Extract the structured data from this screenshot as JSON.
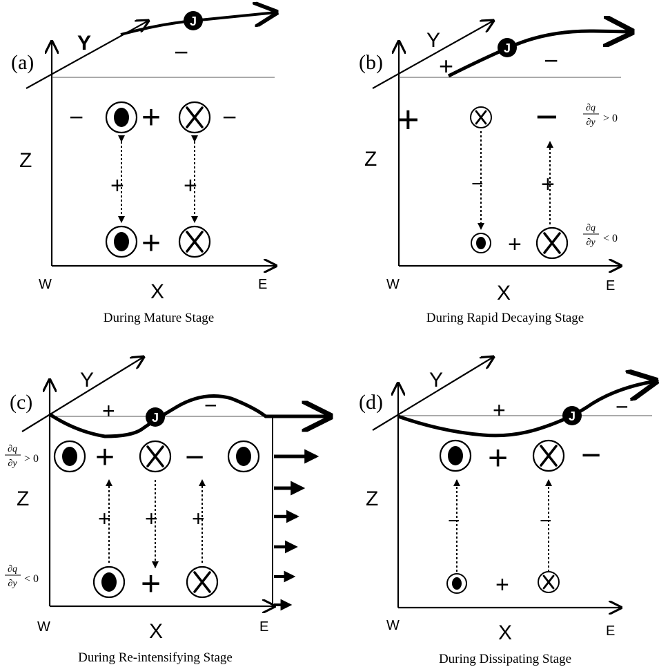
{
  "panels": {
    "a": {
      "tag": "(a)",
      "axis_y": "Y",
      "axis_z": "Z",
      "axis_x": "X",
      "west": "W",
      "east": "E",
      "jet": "J",
      "caption": "During Mature Stage",
      "signs": {
        "top": "−",
        "left": "−",
        "mid": "+",
        "right": "−",
        "link1": "+",
        "link2": "+",
        "bottom": "+"
      }
    },
    "b": {
      "tag": "(b)",
      "axis_y": "Y",
      "axis_z": "Z",
      "axis_x": "X",
      "west": "W",
      "east": "E",
      "jet": "J",
      "caption": "During Rapid Decaying Stage",
      "signs": {
        "jet_left": "+",
        "jet_right": "−",
        "upper_left": "+",
        "upper_right": "−",
        "link1": "−",
        "link2": "+",
        "bottom": "+"
      },
      "eq_upper": "∂q/∂y > 0",
      "eq_lower": "∂q/∂y < 0"
    },
    "c": {
      "tag": "(c)",
      "axis_y": "Y",
      "axis_z": "Z",
      "axis_x": "X",
      "west": "W",
      "east": "E",
      "jet": "J",
      "caption": "During Re-intensifying Stage",
      "signs": {
        "top_left": "+",
        "top_right": "−",
        "mid1": "+",
        "mid2": "−",
        "link1": "+",
        "link2": "+",
        "link3": "+",
        "bottom": "+"
      },
      "eq_upper": "∂q/∂y > 0",
      "eq_lower": "∂q/∂y < 0"
    },
    "d": {
      "tag": "(d)",
      "axis_y": "Y",
      "axis_z": "Z",
      "axis_x": "X",
      "west": "W",
      "east": "E",
      "jet": "J",
      "caption": "During Dissipating Stage",
      "signs": {
        "top_left": "+",
        "top_right": "−",
        "mid": "+",
        "right": "−",
        "link1": "−",
        "link2": "−",
        "bottom": "+"
      }
    }
  }
}
